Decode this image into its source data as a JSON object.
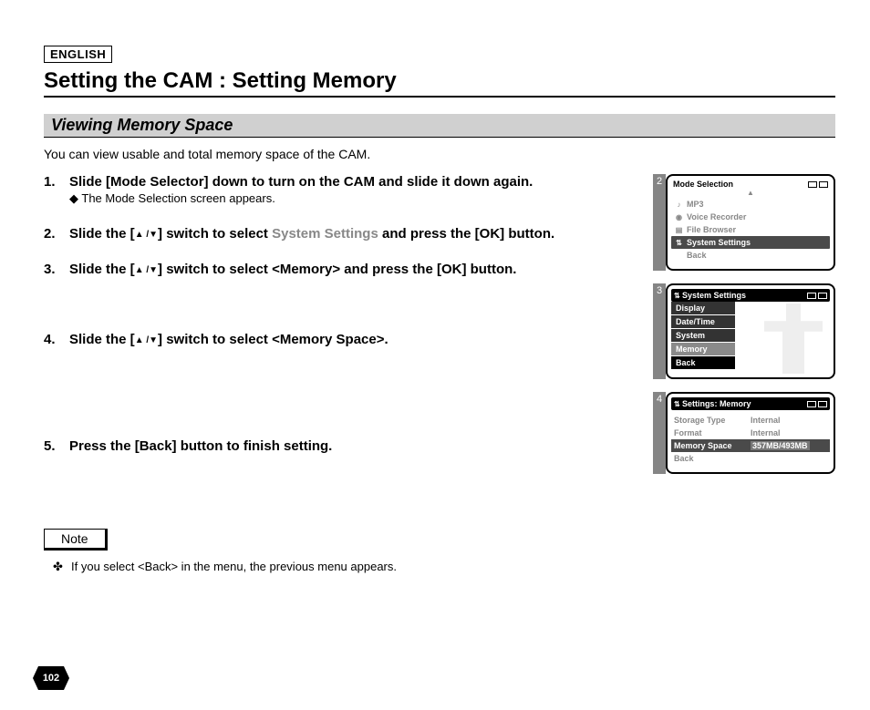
{
  "language_badge": "ENGLISH",
  "page_title": "Setting the CAM : Setting Memory",
  "section_title": "Viewing Memory Space",
  "intro": "You can view usable and total memory space of the CAM.",
  "steps": [
    {
      "main": "Slide [Mode Selector] down to turn on the CAM and slide it down again.",
      "sub": "The Mode Selection screen appears."
    },
    {
      "main_pre": "Slide the [",
      "main_mid": "] switch to select ",
      "main_term": "System Settings",
      "main_post": " and press the [OK] button."
    },
    {
      "main_pre": "Slide the [",
      "main_mid": "] switch to select <Memory> and press the [OK] button."
    },
    {
      "main_pre": "Slide the [",
      "main_mid": "] switch to select <Memory Space>."
    },
    {
      "main": "Press the [Back] button to finish setting."
    }
  ],
  "note_label": "Note",
  "note_text": "If you select <Back> in the menu, the previous menu appears.",
  "page_number": "102",
  "screens": {
    "s2": {
      "num": "2",
      "title": "Mode Selection",
      "items": [
        {
          "icon": "♪",
          "label": "MP3",
          "sel": false
        },
        {
          "icon": "◉",
          "label": "Voice Recorder",
          "sel": false
        },
        {
          "icon": "▤",
          "label": "File Browser",
          "sel": false
        },
        {
          "icon": "⇅",
          "label": "System Settings",
          "sel": true
        },
        {
          "icon": "",
          "label": "Back",
          "sel": false
        }
      ]
    },
    "s3": {
      "num": "3",
      "title": "System Settings",
      "rows": [
        {
          "label": "Display",
          "style": "dark"
        },
        {
          "label": "Date/Time",
          "style": "dark"
        },
        {
          "label": "System",
          "style": "dark"
        },
        {
          "label": "Memory",
          "style": "sel"
        },
        {
          "label": "Back",
          "style": "back"
        }
      ]
    },
    "s4": {
      "num": "4",
      "title": "Settings: Memory",
      "rows": [
        {
          "k": "Storage Type",
          "v": "Internal",
          "sel": false
        },
        {
          "k": "Format",
          "v": "Internal",
          "sel": false
        },
        {
          "k": "Memory Space",
          "v": "357MB/493MB",
          "sel": true
        },
        {
          "k": "Back",
          "v": "",
          "sel": false
        }
      ]
    }
  }
}
